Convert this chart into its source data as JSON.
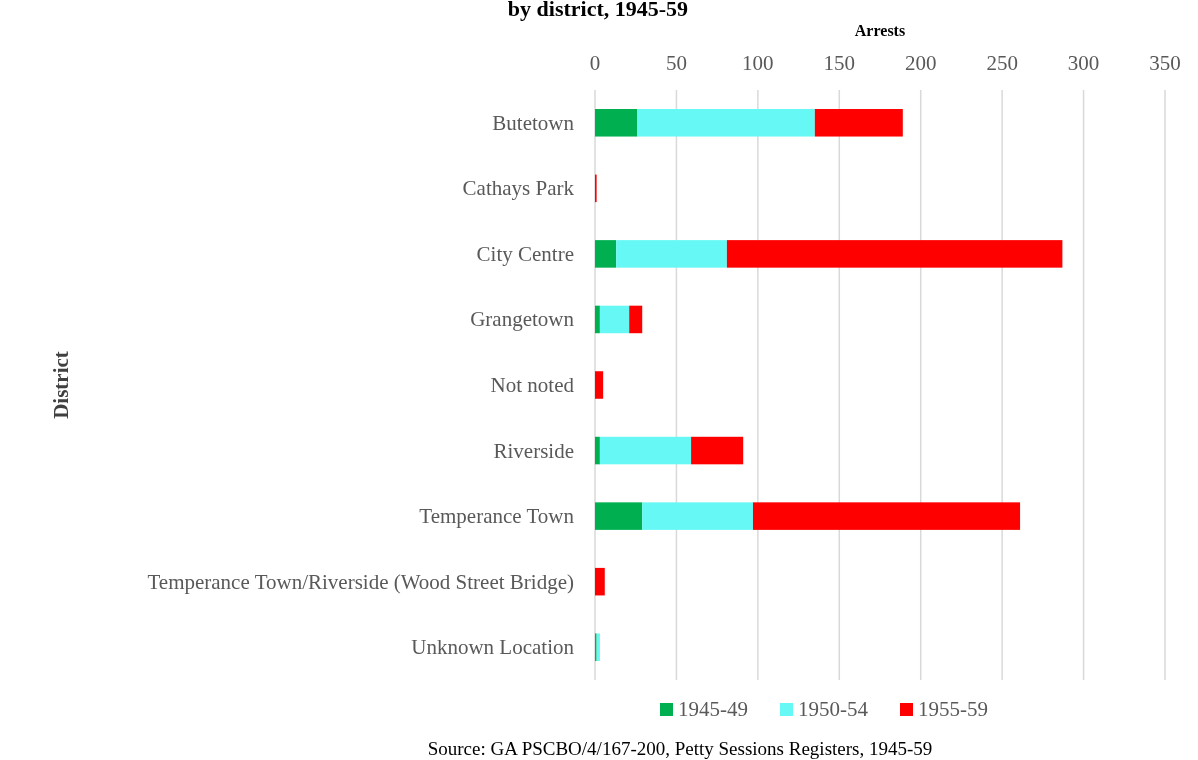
{
  "chart_data": {
    "type": "bar",
    "orientation": "horizontal",
    "stacked": true,
    "title": "by district, 1945-59",
    "xlabel": "Arrests",
    "ylabel": "District",
    "categories": [
      "Butetown",
      "Cathays Park",
      "City Centre",
      "Grangetown",
      "Not noted",
      "Riverside",
      "Temperance Town",
      "Temperance Town/Riverside (Wood Street Bridge)",
      "Unknown Location"
    ],
    "series": [
      {
        "name": "1945-49",
        "color": "#00b050",
        "values": [
          26,
          0,
          13,
          3,
          0,
          3,
          29,
          0,
          1
        ]
      },
      {
        "name": "1950-54",
        "color": "#66f8f5",
        "values": [
          109,
          0,
          68,
          18,
          0,
          56,
          68,
          0,
          2
        ]
      },
      {
        "name": "1955-59",
        "color": "#ff0000",
        "values": [
          54,
          1,
          206,
          8,
          5,
          32,
          164,
          6,
          0
        ]
      }
    ],
    "xlim": [
      0,
      350
    ],
    "xticks": [
      0,
      50,
      100,
      150,
      200,
      250,
      300,
      350
    ],
    "grid": "x",
    "legend": "bottom",
    "annotations": [
      "Source: GA PSCBO/4/167-200, Petty Sessions Registers, 1945-59"
    ]
  }
}
